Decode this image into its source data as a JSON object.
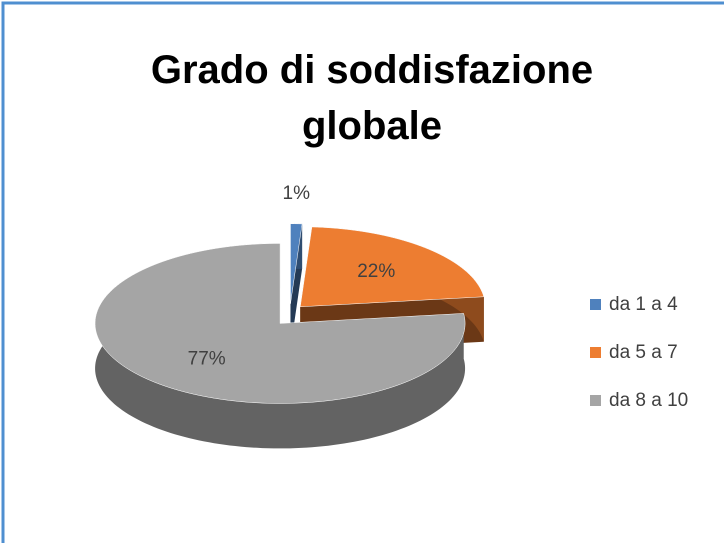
{
  "chart_data": {
    "type": "pie3d",
    "title": "Grado di soddisfazione globale",
    "categories": [
      "da 1 a 4",
      "da 5 a 7",
      "da 8 a 10"
    ],
    "values": [
      1,
      22,
      77
    ],
    "value_labels": [
      "1%",
      "22%",
      "77%"
    ],
    "colors": [
      "#4f81bd",
      "#ed7d31",
      "#a5a5a5"
    ],
    "legend": "right"
  }
}
